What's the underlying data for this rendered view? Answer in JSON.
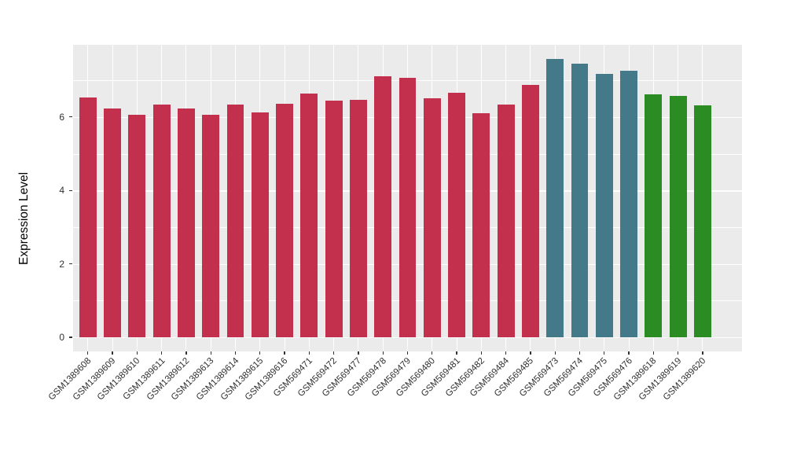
{
  "chart_data": {
    "type": "bar",
    "title": "",
    "xlabel": "",
    "ylabel": "Expression Level",
    "ylim": [
      0,
      7.97
    ],
    "yticks": [
      0,
      2,
      4,
      6
    ],
    "yticks_minor": [
      1,
      3,
      5,
      7
    ],
    "grid": "on",
    "legend": "none",
    "panel_bg": "#EBEBEB",
    "grid_color": "#FFFFFF",
    "tick_color": "#333333",
    "axis_text_color": "#303030",
    "group_colors": {
      "crimson": "#C3304D",
      "teal": "#44798A",
      "green": "#2B8C23"
    },
    "bars": [
      {
        "label": "GSM1389608",
        "value": 6.53,
        "group": "crimson"
      },
      {
        "label": "GSM1389609",
        "value": 6.23,
        "group": "crimson"
      },
      {
        "label": "GSM1389610",
        "value": 6.05,
        "group": "crimson"
      },
      {
        "label": "GSM1389611",
        "value": 6.33,
        "group": "crimson"
      },
      {
        "label": "GSM1389612",
        "value": 6.23,
        "group": "crimson"
      },
      {
        "label": "GSM1389613",
        "value": 6.05,
        "group": "crimson"
      },
      {
        "label": "GSM1389614",
        "value": 6.34,
        "group": "crimson"
      },
      {
        "label": "GSM1389615",
        "value": 6.12,
        "group": "crimson"
      },
      {
        "label": "GSM1389616",
        "value": 6.36,
        "group": "crimson"
      },
      {
        "label": "GSM569471",
        "value": 6.63,
        "group": "crimson"
      },
      {
        "label": "GSM569472",
        "value": 6.44,
        "group": "crimson"
      },
      {
        "label": "GSM569477",
        "value": 6.46,
        "group": "crimson"
      },
      {
        "label": "GSM569478",
        "value": 7.1,
        "group": "crimson"
      },
      {
        "label": "GSM569479",
        "value": 7.06,
        "group": "crimson"
      },
      {
        "label": "GSM569480",
        "value": 6.5,
        "group": "crimson"
      },
      {
        "label": "GSM569481",
        "value": 6.67,
        "group": "crimson"
      },
      {
        "label": "GSM569482",
        "value": 6.11,
        "group": "crimson"
      },
      {
        "label": "GSM569484",
        "value": 6.34,
        "group": "crimson"
      },
      {
        "label": "GSM569485",
        "value": 6.88,
        "group": "crimson"
      },
      {
        "label": "GSM569473",
        "value": 7.59,
        "group": "teal"
      },
      {
        "label": "GSM569474",
        "value": 7.46,
        "group": "teal"
      },
      {
        "label": "GSM569475",
        "value": 7.17,
        "group": "teal"
      },
      {
        "label": "GSM569476",
        "value": 7.27,
        "group": "teal"
      },
      {
        "label": "GSM1389618",
        "value": 6.62,
        "group": "green"
      },
      {
        "label": "GSM1389619",
        "value": 6.58,
        "group": "green"
      },
      {
        "label": "GSM1389620",
        "value": 6.31,
        "group": "green"
      }
    ]
  }
}
